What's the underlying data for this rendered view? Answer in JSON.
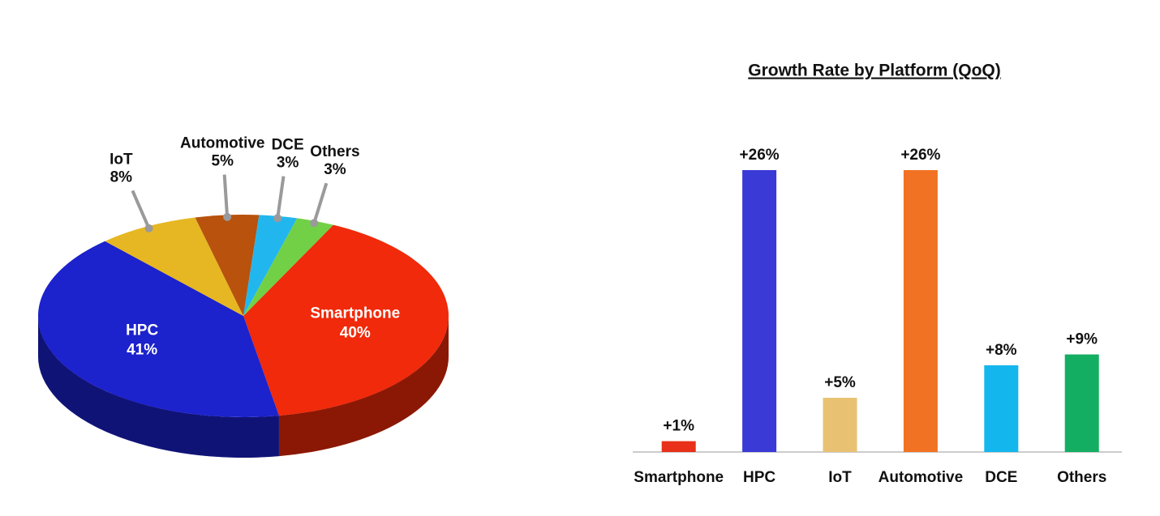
{
  "chart_data": [
    {
      "type": "pie",
      "categories": [
        "Smartphone",
        "HPC",
        "IoT",
        "Automotive",
        "DCE",
        "Others"
      ],
      "values": [
        40,
        41,
        8,
        5,
        3,
        3
      ],
      "value_labels": [
        "40%",
        "41%",
        "8%",
        "5%",
        "3%",
        "3%"
      ],
      "colors": [
        "#f02a0a",
        "#1c22cc",
        "#e6b722",
        "#b8520c",
        "#22b6ee",
        "#72d046"
      ]
    },
    {
      "type": "bar",
      "title": "Growth Rate by Platform (QoQ)",
      "categories": [
        "Smartphone",
        "HPC",
        "IoT",
        "Automotive",
        "DCE",
        "Others"
      ],
      "values": [
        1,
        26,
        5,
        26,
        8,
        9
      ],
      "value_labels": [
        "+1%",
        "+26%",
        "+5%",
        "+26%",
        "+8%",
        "+9%"
      ],
      "colors": [
        "#e8301a",
        "#3a3ad6",
        "#e8c272",
        "#f07222",
        "#14b6ee",
        "#14ae62"
      ]
    }
  ]
}
